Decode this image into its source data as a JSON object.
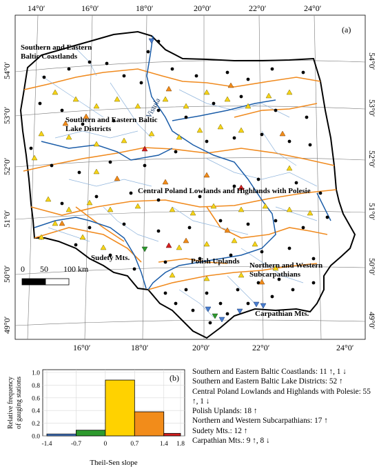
{
  "map": {
    "panel_label": "(a)",
    "river_label": "Vistula",
    "lon_ticks_top": [
      "14°0′",
      "16°0′",
      "18°0′",
      "20°0′",
      "22°0′",
      "24°0′"
    ],
    "lon_ticks_bottom": [
      "16°0′",
      "18°0′",
      "20°0′",
      "22°0′",
      "24°0′"
    ],
    "lat_ticks_left": [
      "54°0′",
      "53°0′",
      "52°0′",
      "51°0′",
      "50°0′",
      "49°0′"
    ],
    "lat_ticks_right": [
      "54°0′",
      "53°0′",
      "52°0′",
      "51°0′",
      "50°0′",
      "49°0′"
    ],
    "regions": [
      {
        "line1": "Southern and Eastern",
        "line2": "Baltic Coastlands"
      },
      {
        "line1": "Southern and Eastern Baltic",
        "line2": "Lake Districts"
      },
      {
        "line1": "Central Poland Lowlands and Highlands with Polesie",
        "line2": ""
      },
      {
        "line1": "Sudety Mts.",
        "line2": ""
      },
      {
        "line1": "Polish Uplands",
        "line2": ""
      },
      {
        "line1": "Northern and Western",
        "line2": "Subcarpathians"
      },
      {
        "line1": "Carpathian Mts.",
        "line2": ""
      }
    ],
    "scale_bar": {
      "labels": [
        "0",
        "50",
        "100 km"
      ]
    },
    "colors": {
      "border": "#000000",
      "rivers": "#1a5ca8",
      "minor_rivers": "#8fb4dc",
      "region_boundaries": "#f08a1e",
      "not_significant": "#000000",
      "class_neg_high": "#4a7fd0",
      "class_neg_low": "#2e9a2e",
      "class_pos_low": "#f7d417",
      "class_pos_mid": "#f28c1a",
      "class_pos_high": "#d62020"
    }
  },
  "histogram": {
    "panel_label": "(b)",
    "ylabel_line1": "Relative frequency",
    "ylabel_line2": "of gauging stations",
    "xlabel": "Theil-Sen slope",
    "y_ticks": [
      "0.0",
      "0.2",
      "0.4",
      "0.6",
      "0.8",
      "1.0"
    ],
    "x_ticks": [
      "-1.4",
      "-0.7",
      "0",
      "0.7",
      "1.4",
      "1.8"
    ]
  },
  "chart_data": {
    "type": "bar",
    "title": "",
    "xlabel": "Theil-Sen slope",
    "ylabel": "Relative frequency of gauging stations",
    "ylim": [
      0,
      1.0
    ],
    "bins": [
      {
        "from": -1.4,
        "to": -0.7,
        "value": 0.03,
        "color": "#4a7fd0"
      },
      {
        "from": -0.7,
        "to": 0.0,
        "value": 0.09,
        "color": "#2e9a2e"
      },
      {
        "from": 0.0,
        "to": 0.7,
        "value": 0.88,
        "color": "#ffd200"
      },
      {
        "from": 0.7,
        "to": 1.4,
        "value": 0.38,
        "color": "#f28c1a"
      },
      {
        "from": 1.4,
        "to": 1.8,
        "value": 0.04,
        "color": "#d62020"
      }
    ]
  },
  "legend": [
    "Southern and Eastern Baltic Coastlands: 11 ↑, 1 ↓",
    "Southern and Eastern Baltic Lake Districts: 52 ↑",
    "Central Poland Lowlands and Highlands with Polesie: 55 ↑, 1 ↓",
    "Polish Uplands: 18 ↑",
    "Northern and Western Subcarpathians: 17 ↑",
    "Sudety Mts.: 12 ↑",
    "Carpathian Mts.: 9 ↑, 8 ↓"
  ]
}
